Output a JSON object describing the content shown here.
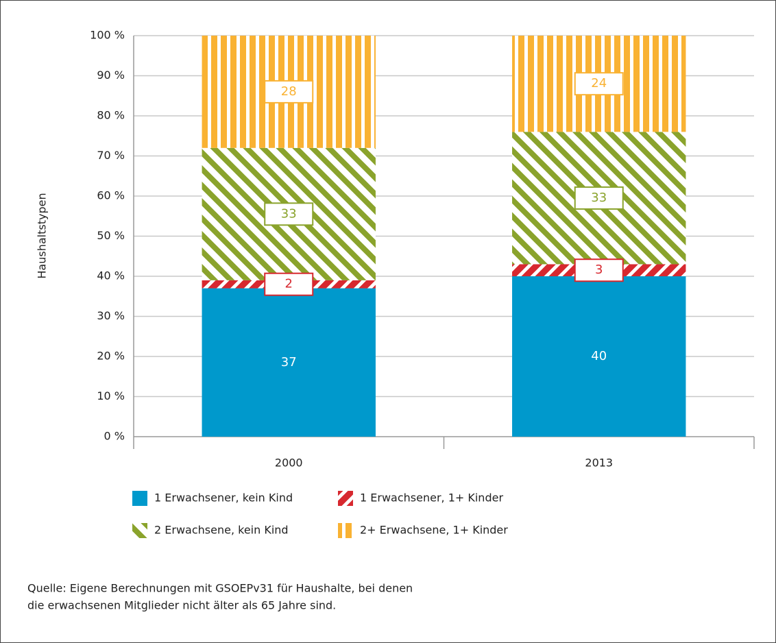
{
  "chart_data": {
    "type": "stacked-bar",
    "y_label": "Haushaltstypen",
    "categories": [
      "2000",
      "2013"
    ],
    "series": [
      {
        "name": "1 Erwachsener, kein Kind",
        "color": "#0099cc",
        "pattern": "solid",
        "values": [
          37,
          40
        ]
      },
      {
        "name": "1 Erwachsener, 1+ Kinder",
        "color": "#d7282f",
        "pattern": "hatch-up",
        "values": [
          2,
          3
        ]
      },
      {
        "name": "2 Erwachsene, kein Kind",
        "color": "#8aa32c",
        "pattern": "hatch-down",
        "values": [
          33,
          33
        ]
      },
      {
        "name": "2+ Erwachsene, 1+ Kinder",
        "color": "#f9b233",
        "pattern": "vertical",
        "values": [
          28,
          24
        ]
      }
    ],
    "ylim": [
      0,
      100
    ],
    "yticks": [
      {
        "value": 0,
        "label": "0 %"
      },
      {
        "value": 10,
        "label": "10 %"
      },
      {
        "value": 20,
        "label": "20 %"
      },
      {
        "value": 30,
        "label": "30 %"
      },
      {
        "value": 40,
        "label": "40 %"
      },
      {
        "value": 50,
        "label": "50 %"
      },
      {
        "value": 60,
        "label": "60 %"
      },
      {
        "value": 70,
        "label": "70 %"
      },
      {
        "value": 80,
        "label": "80 %"
      },
      {
        "value": 90,
        "label": "90 %"
      },
      {
        "value": 100,
        "label": "100 %"
      }
    ],
    "grid": true,
    "note": [
      "Quelle: Eigene Berechnungen mit GSOEPv31 für Haushalte, bei denen",
      "die erwachsenen Mitglieder nicht älter als 65 Jahre sind."
    ]
  }
}
